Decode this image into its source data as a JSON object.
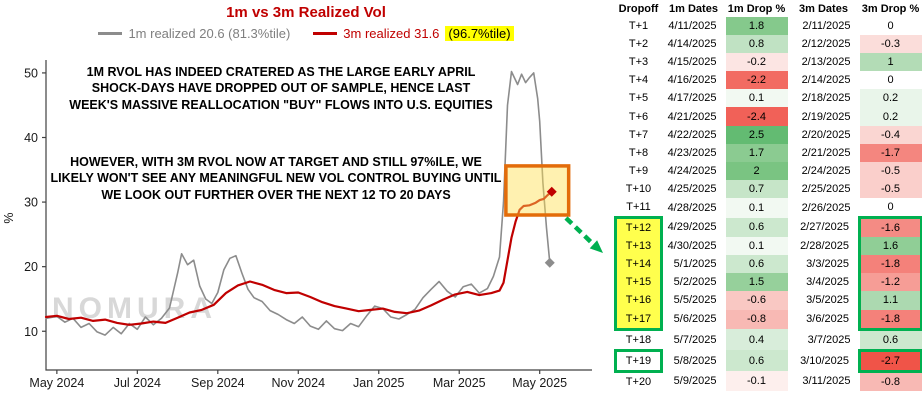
{
  "chart_data": {
    "type": "line",
    "title": "1m vs 3m Realized Vol",
    "ylabel": "%",
    "ylim": [
      4,
      52
    ],
    "yticks": [
      10,
      20,
      30,
      40,
      50
    ],
    "xlim": [
      -0.27,
      13.3
    ],
    "x_unit": "months since 2024-05-01",
    "xticks": [
      {
        "m": 0,
        "label": "May 2024"
      },
      {
        "m": 2,
        "label": "Jul 2024"
      },
      {
        "m": 4,
        "label": "Sep 2024"
      },
      {
        "m": 6,
        "label": "Nov 2024"
      },
      {
        "m": 8,
        "label": "Jan 2025"
      },
      {
        "m": 10,
        "label": "Mar 2025"
      },
      {
        "m": 12,
        "label": "May 2025"
      }
    ],
    "legend": {
      "series1_label": "1m realized 20.6 (81.3%tile)",
      "series2_label": "3m realized 31.6",
      "series2_highlight": "(96.7%tile)"
    },
    "watermark": "NOMURA",
    "annotations": {
      "note1": "1M RVOL HAS INDEED CRATERED AS THE LARGE EARLY APRIL SHOCK-DAYS HAVE DROPPED OUT OF SAMPLE, HENCE LAST WEEK'S MASSIVE REALLOCATION \"BUY\" FLOWS INTO U.S. EQUITIES",
      "note2": "HOWEVER, WITH 3M RVOL NOW AT TARGET AND STILL 97%ILE, WE LIKELY WON'T SEE ANY MEANINGFUL NEW VOL CONTROL BUYING UNTIL WE LOOK OUT FURTHER OVER THE NEXT 12 TO 20 DAYS"
    },
    "series": [
      {
        "name": "1m realized",
        "last_value": 20.6,
        "percentile": "81.3%tile",
        "color": "#8C8C8C",
        "points": [
          [
            -0.27,
            12.0
          ],
          [
            0,
            12.3
          ],
          [
            0.2,
            11.4
          ],
          [
            0.4,
            12.0
          ],
          [
            0.6,
            10.6
          ],
          [
            0.8,
            11.2
          ],
          [
            1.0,
            9.9
          ],
          [
            1.2,
            9.4
          ],
          [
            1.4,
            10.6
          ],
          [
            1.6,
            9.6
          ],
          [
            1.8,
            11.2
          ],
          [
            2.0,
            10.3
          ],
          [
            2.2,
            12.2
          ],
          [
            2.4,
            11.0
          ],
          [
            2.6,
            12.0
          ],
          [
            2.8,
            13.6
          ],
          [
            3.0,
            19.0
          ],
          [
            3.1,
            22.0
          ],
          [
            3.25,
            20.3
          ],
          [
            3.4,
            21.0
          ],
          [
            3.55,
            17.0
          ],
          [
            3.7,
            15.0
          ],
          [
            3.85,
            14.3
          ],
          [
            4.0,
            16.0
          ],
          [
            4.15,
            19.5
          ],
          [
            4.3,
            21.3
          ],
          [
            4.45,
            21.7
          ],
          [
            4.6,
            19.0
          ],
          [
            4.75,
            16.5
          ],
          [
            4.9,
            15.2
          ],
          [
            5.1,
            14.6
          ],
          [
            5.3,
            13.2
          ],
          [
            5.5,
            12.6
          ],
          [
            5.7,
            11.8
          ],
          [
            5.9,
            11.2
          ],
          [
            6.1,
            12.2
          ],
          [
            6.3,
            10.8
          ],
          [
            6.5,
            10.3
          ],
          [
            6.7,
            11.6
          ],
          [
            6.9,
            10.4
          ],
          [
            7.1,
            10.1
          ],
          [
            7.3,
            11.2
          ],
          [
            7.5,
            10.7
          ],
          [
            7.7,
            12.4
          ],
          [
            7.9,
            13.9
          ],
          [
            8.1,
            13.5
          ],
          [
            8.3,
            12.2
          ],
          [
            8.5,
            11.9
          ],
          [
            8.7,
            12.6
          ],
          [
            8.9,
            13.4
          ],
          [
            9.1,
            15.2
          ],
          [
            9.3,
            16.5
          ],
          [
            9.5,
            17.7
          ],
          [
            9.7,
            16.2
          ],
          [
            9.9,
            15.3
          ],
          [
            10.1,
            16.9
          ],
          [
            10.3,
            17.3
          ],
          [
            10.5,
            15.9
          ],
          [
            10.7,
            16.6
          ],
          [
            10.85,
            18.5
          ],
          [
            11.0,
            21.5
          ],
          [
            11.1,
            30.0
          ],
          [
            11.2,
            45.0
          ],
          [
            11.3,
            50.2
          ],
          [
            11.45,
            48.2
          ],
          [
            11.55,
            49.8
          ],
          [
            11.65,
            48.5
          ],
          [
            11.75,
            49.3
          ],
          [
            11.85,
            50.0
          ],
          [
            11.95,
            46.0
          ],
          [
            12.0,
            42.5
          ],
          [
            12.08,
            33.0
          ],
          [
            12.17,
            26.0
          ],
          [
            12.25,
            20.6
          ]
        ]
      },
      {
        "name": "3m realized",
        "last_value": 31.6,
        "percentile": "96.7%tile",
        "color": "#C00000",
        "points": [
          [
            -0.27,
            12.2
          ],
          [
            0,
            12.4
          ],
          [
            0.3,
            11.9
          ],
          [
            0.6,
            12.1
          ],
          [
            0.9,
            11.6
          ],
          [
            1.2,
            11.8
          ],
          [
            1.5,
            11.3
          ],
          [
            1.8,
            11.0
          ],
          [
            2.1,
            11.2
          ],
          [
            2.4,
            11.5
          ],
          [
            2.7,
            11.3
          ],
          [
            3.0,
            12.1
          ],
          [
            3.3,
            12.9
          ],
          [
            3.6,
            13.3
          ],
          [
            3.9,
            14.1
          ],
          [
            4.2,
            15.9
          ],
          [
            4.5,
            17.1
          ],
          [
            4.8,
            17.7
          ],
          [
            5.1,
            17.2
          ],
          [
            5.4,
            16.4
          ],
          [
            5.7,
            15.9
          ],
          [
            6.0,
            16.0
          ],
          [
            6.3,
            15.3
          ],
          [
            6.6,
            14.5
          ],
          [
            6.9,
            13.9
          ],
          [
            7.2,
            13.5
          ],
          [
            7.5,
            13.1
          ],
          [
            7.8,
            13.3
          ],
          [
            8.1,
            13.5
          ],
          [
            8.4,
            13.0
          ],
          [
            8.7,
            12.8
          ],
          [
            9.0,
            13.2
          ],
          [
            9.3,
            14.0
          ],
          [
            9.6,
            14.9
          ],
          [
            9.9,
            15.7
          ],
          [
            10.2,
            16.1
          ],
          [
            10.5,
            15.6
          ],
          [
            10.8,
            15.9
          ],
          [
            11.0,
            16.3
          ],
          [
            11.1,
            17.5
          ],
          [
            11.2,
            21.0
          ],
          [
            11.3,
            24.5
          ],
          [
            11.4,
            27.0
          ],
          [
            11.5,
            28.8
          ],
          [
            11.6,
            29.4
          ],
          [
            11.75,
            29.5
          ],
          [
            11.9,
            29.9
          ],
          [
            12.0,
            30.3
          ],
          [
            12.1,
            30.5
          ],
          [
            12.2,
            31.1
          ],
          [
            12.3,
            31.6
          ]
        ]
      }
    ],
    "highlight_box": {
      "x0": 11.16,
      "x1": 12.72,
      "y0": 28.0,
      "y1": 35.6,
      "stroke": "#E36C0A",
      "fill_rgba": "rgba(255,225,80,0.45)"
    },
    "arrow_color": "#00B050",
    "colors": {
      "title": "#C00000",
      "legend_highlight_bg": "#FFFF00",
      "axis": "#404040"
    }
  },
  "table": {
    "headers": [
      "Dropoff",
      "1m Dates",
      "1m Drop %",
      "3m Dates",
      "3m Drop %"
    ],
    "highlight_border_color": "#00B050",
    "highlight_fill_color": "#FFFF4D",
    "rows": [
      {
        "t": "T+1",
        "d1": "4/11/2025",
        "v1": "1.8",
        "c1": "#85C98C",
        "d3": "2/11/2025",
        "v3": "0",
        "c3": "#FFFFFF",
        "tCls": "",
        "c3Cls": ""
      },
      {
        "t": "T+2",
        "d1": "4/14/2025",
        "v1": "0.8",
        "c1": "#C0E2C3",
        "d3": "2/12/2025",
        "v3": "-0.3",
        "c3": "#FBDDDA",
        "tCls": "",
        "c3Cls": ""
      },
      {
        "t": "T+3",
        "d1": "4/15/2025",
        "v1": "-0.2",
        "c1": "#FCE5E3",
        "d3": "2/13/2025",
        "v3": "1",
        "c3": "#B3DCB6",
        "tCls": "",
        "c3Cls": ""
      },
      {
        "t": "T+4",
        "d1": "4/16/2025",
        "v1": "-2.2",
        "c1": "#F26B62",
        "d3": "2/14/2025",
        "v3": "0",
        "c3": "#FFFFFF",
        "tCls": "",
        "c3Cls": ""
      },
      {
        "t": "T+5",
        "d1": "4/17/2025",
        "v1": "0.1",
        "c1": "#F2F9F2",
        "d3": "2/18/2025",
        "v3": "0.2",
        "c3": "#E9F5EA",
        "tCls": "",
        "c3Cls": ""
      },
      {
        "t": "T+6",
        "d1": "4/21/2025",
        "v1": "-2.4",
        "c1": "#F16158",
        "d3": "2/19/2025",
        "v3": "0.2",
        "c3": "#E9F5EA",
        "tCls": "",
        "c3Cls": ""
      },
      {
        "t": "T+7",
        "d1": "4/22/2025",
        "v1": "2.5",
        "c1": "#63BB72",
        "d3": "2/20/2025",
        "v3": "-0.4",
        "c3": "#FAD6D2",
        "tCls": "",
        "c3Cls": ""
      },
      {
        "t": "T+8",
        "d1": "4/23/2025",
        "v1": "1.7",
        "c1": "#8BCB91",
        "d3": "2/21/2025",
        "v3": "-1.7",
        "c3": "#F4867F",
        "tCls": "",
        "c3Cls": ""
      },
      {
        "t": "T+9",
        "d1": "4/24/2025",
        "v1": "2",
        "c1": "#7AC482",
        "d3": "2/24/2025",
        "v3": "-0.5",
        "c3": "#FACFCB",
        "tCls": "",
        "c3Cls": ""
      },
      {
        "t": "T+10",
        "d1": "4/25/2025",
        "v1": "0.7",
        "c1": "#C6E5C8",
        "d3": "2/25/2025",
        "v3": "-0.5",
        "c3": "#FACFCB",
        "tCls": "",
        "c3Cls": ""
      },
      {
        "t": "T+11",
        "d1": "4/28/2025",
        "v1": "0.1",
        "c1": "#F2F9F2",
        "d3": "2/26/2025",
        "v3": "0",
        "c3": "#FFFFFF",
        "tCls": "",
        "c3Cls": ""
      },
      {
        "t": "T+12",
        "d1": "4/29/2025",
        "v1": "0.6",
        "c1": "#CCE8CE",
        "d3": "2/27/2025",
        "v3": "-1.6",
        "c3": "#F48B84",
        "tCls": "hl-side hl-top hl-yellow",
        "c3Cls": "hl-side hl-top"
      },
      {
        "t": "T+13",
        "d1": "4/30/2025",
        "v1": "0.1",
        "c1": "#F2F9F2",
        "d3": "2/28/2025",
        "v3": "1.6",
        "c3": "#90CE96",
        "tCls": "hl-side hl-yellow",
        "c3Cls": "hl-side"
      },
      {
        "t": "T+14",
        "d1": "5/1/2025",
        "v1": "0.6",
        "c1": "#CCE8CE",
        "d3": "3/3/2025",
        "v3": "-1.8",
        "c3": "#F4817A",
        "tCls": "hl-side hl-yellow",
        "c3Cls": "hl-side"
      },
      {
        "t": "T+15",
        "d1": "5/2/2025",
        "v1": "1.5",
        "c1": "#96D09B",
        "d3": "3/4/2025",
        "v3": "-1.2",
        "c3": "#F69D96",
        "tCls": "hl-side hl-yellow",
        "c3Cls": "hl-side"
      },
      {
        "t": "T+16",
        "d1": "5/5/2025",
        "v1": "-0.6",
        "c1": "#F9C8C3",
        "d3": "3/5/2025",
        "v3": "1.1",
        "c3": "#ACD9B0",
        "tCls": "hl-side hl-yellow",
        "c3Cls": "hl-side"
      },
      {
        "t": "T+17",
        "d1": "5/6/2025",
        "v1": "-0.8",
        "c1": "#F8B9B4",
        "d3": "3/6/2025",
        "v3": "-1.8",
        "c3": "#F4817A",
        "tCls": "hl-side hl-bot hl-yellow",
        "c3Cls": "hl-side hl-bot"
      },
      {
        "t": "T+18",
        "d1": "5/7/2025",
        "v1": "0.4",
        "c1": "#D8EDDA",
        "d3": "3/7/2025",
        "v3": "0.6",
        "c3": "#CCE8CE",
        "tCls": "",
        "c3Cls": ""
      },
      {
        "t": "T+19",
        "d1": "5/8/2025",
        "v1": "0.6",
        "c1": "#CCE8CE",
        "d3": "3/10/2025",
        "v3": "-2.7",
        "c3": "#F05448",
        "tCls": "hl-solo",
        "c3Cls": "hl-solo"
      },
      {
        "t": "T+20",
        "d1": "5/9/2025",
        "v1": "-0.1",
        "c1": "#FDEFED",
        "d3": "3/11/2025",
        "v3": "-0.8",
        "c3": "#F8B9B4",
        "tCls": "",
        "c3Cls": ""
      }
    ]
  }
}
